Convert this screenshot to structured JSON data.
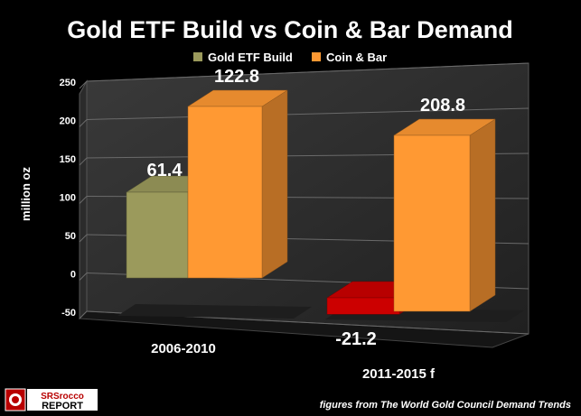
{
  "chart_data": {
    "type": "bar",
    "title": "Gold ETF Build vs Coin & Bar Demand",
    "ylabel": "million oz",
    "xlabel": "",
    "categories": [
      "2006-2010",
      "2011-2015 f"
    ],
    "series": [
      {
        "name": "Gold ETF Build",
        "values": [
          61.4,
          -21.2
        ]
      },
      {
        "name": "Coin & Bar",
        "values": [
          122.8,
          208.8
        ]
      }
    ],
    "ylim": [
      -50,
      250
    ],
    "y_ticks": [
      "250",
      "200",
      "150",
      "100",
      "50",
      "0",
      "-50"
    ],
    "data_labels": [
      "61.4",
      "122.8",
      "-21.2",
      "208.8"
    ],
    "legend_position": "top",
    "grid": true,
    "colors": {
      "etf_positive": "#9b9a5c",
      "etf_negative": "#cc0000",
      "coin_bar": "#ff9933",
      "background": "#000000",
      "text": "#ffffff"
    }
  },
  "footnote": "figures from The World Gold Council Demand Trends",
  "logo": {
    "line1": "SRSrocco",
    "line2": "REPORT"
  }
}
